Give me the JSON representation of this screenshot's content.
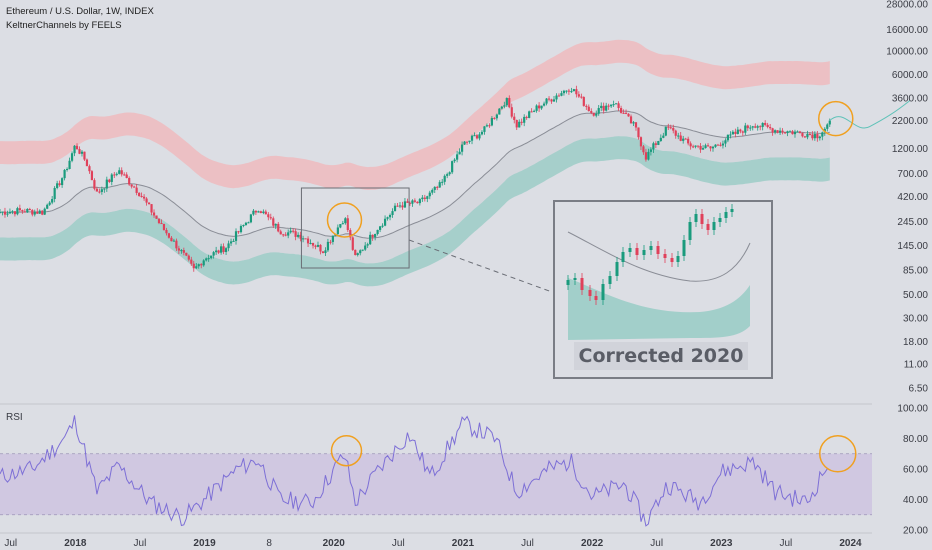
{
  "header": {
    "title": "Ethereum / U.S. Dollar, 1W, INDEX",
    "indicator": "KeltnerChannels by FEELS"
  },
  "rsi_panel": {
    "label": "RSI"
  },
  "inset": {
    "label": "Corrected 2020"
  },
  "colors": {
    "background": "#dcdee4",
    "up": "#1a9b7d",
    "down": "#e0405a",
    "upper_band": "#f2b5b9",
    "lower_band": "#8fc9c1",
    "midline": "#8a8d96",
    "rsi_line": "#7d6fd6",
    "rsi_band": "#cbbfe0",
    "highlight": "#f0a020"
  },
  "chart_data": [
    {
      "type": "line",
      "subtype": "candlestick",
      "title": "Ethereum / U.S. Dollar, 1W, INDEX",
      "yscale": "log",
      "y_ticks": [
        "28000.00",
        "16000.00",
        "10000.00",
        "6000.00",
        "3600.00",
        "2200.00",
        "1200.00",
        "700.00",
        "420.00",
        "245.00",
        "145.00",
        "85.00",
        "50.00",
        "30.00",
        "18.00",
        "11.00",
        "6.50"
      ],
      "x_ticks": [
        "Jul",
        "2018",
        "Jul",
        "2019",
        "8",
        "2020",
        "Jul",
        "2021",
        "Jul",
        "2022",
        "Jul",
        "2023",
        "Jul",
        "2024"
      ],
      "bold_x_ticks": [
        "2018",
        "2019",
        "2020",
        "2021",
        "2022",
        "2023",
        "2024"
      ],
      "x_range": [
        "2017-06",
        "2024-03"
      ],
      "series": [
        {
          "x": "2017-06",
          "y": 300
        },
        {
          "x": "2017-08",
          "y": 310
        },
        {
          "x": "2017-10",
          "y": 300
        },
        {
          "x": "2017-12",
          "y": 700
        },
        {
          "x": "2018-01",
          "y": 1300
        },
        {
          "x": "2018-02",
          "y": 900
        },
        {
          "x": "2018-03",
          "y": 450
        },
        {
          "x": "2018-05",
          "y": 750
        },
        {
          "x": "2018-07",
          "y": 450
        },
        {
          "x": "2018-09",
          "y": 220
        },
        {
          "x": "2018-11",
          "y": 120
        },
        {
          "x": "2018-12",
          "y": 85
        },
        {
          "x": "2019-01",
          "y": 110
        },
        {
          "x": "2019-03",
          "y": 140
        },
        {
          "x": "2019-05",
          "y": 250
        },
        {
          "x": "2019-06",
          "y": 330
        },
        {
          "x": "2019-08",
          "y": 200
        },
        {
          "x": "2019-10",
          "y": 180
        },
        {
          "x": "2019-12",
          "y": 130
        },
        {
          "x": "2020-02",
          "y": 270
        },
        {
          "x": "2020-03",
          "y": 110
        },
        {
          "x": "2020-05",
          "y": 210
        },
        {
          "x": "2020-07",
          "y": 350
        },
        {
          "x": "2020-09",
          "y": 370
        },
        {
          "x": "2020-11",
          "y": 550
        },
        {
          "x": "2021-01",
          "y": 1300
        },
        {
          "x": "2021-03",
          "y": 1800
        },
        {
          "x": "2021-05",
          "y": 3500
        },
        {
          "x": "2021-06",
          "y": 2000
        },
        {
          "x": "2021-08",
          "y": 3000
        },
        {
          "x": "2021-11",
          "y": 4600
        },
        {
          "x": "2022-01",
          "y": 2600
        },
        {
          "x": "2022-03",
          "y": 3300
        },
        {
          "x": "2022-05",
          "y": 1900
        },
        {
          "x": "2022-06",
          "y": 1000
        },
        {
          "x": "2022-08",
          "y": 1900
        },
        {
          "x": "2022-10",
          "y": 1300
        },
        {
          "x": "2022-12",
          "y": 1200
        },
        {
          "x": "2023-02",
          "y": 1600
        },
        {
          "x": "2023-04",
          "y": 2050
        },
        {
          "x": "2023-06",
          "y": 1800
        },
        {
          "x": "2023-08",
          "y": 1700
        },
        {
          "x": "2023-10",
          "y": 1600
        },
        {
          "x": "2023-11",
          "y": 2050
        }
      ],
      "annotations": [
        "2020-02 local high (circled)",
        "2023-11 breakout (circled)"
      ]
    },
    {
      "type": "line",
      "title": "RSI",
      "ylim": [
        20,
        100
      ],
      "y_ticks": [
        "100.00",
        "80.00",
        "60.00",
        "40.00",
        "20.00"
      ],
      "band": [
        30,
        70
      ],
      "series": [
        {
          "x": "2017-06",
          "y": 55
        },
        {
          "x": "2017-09",
          "y": 60
        },
        {
          "x": "2017-12",
          "y": 80
        },
        {
          "x": "2018-01",
          "y": 92
        },
        {
          "x": "2018-03",
          "y": 45
        },
        {
          "x": "2018-05",
          "y": 62
        },
        {
          "x": "2018-08",
          "y": 38
        },
        {
          "x": "2018-11",
          "y": 28
        },
        {
          "x": "2019-01",
          "y": 40
        },
        {
          "x": "2019-04",
          "y": 60
        },
        {
          "x": "2019-06",
          "y": 66
        },
        {
          "x": "2019-08",
          "y": 40
        },
        {
          "x": "2019-11",
          "y": 38
        },
        {
          "x": "2020-02",
          "y": 70
        },
        {
          "x": "2020-03",
          "y": 38
        },
        {
          "x": "2020-05",
          "y": 58
        },
        {
          "x": "2020-08",
          "y": 83
        },
        {
          "x": "2020-10",
          "y": 55
        },
        {
          "x": "2021-01",
          "y": 90
        },
        {
          "x": "2021-04",
          "y": 80
        },
        {
          "x": "2021-06",
          "y": 45
        },
        {
          "x": "2021-09",
          "y": 60
        },
        {
          "x": "2021-11",
          "y": 65
        },
        {
          "x": "2022-01",
          "y": 42
        },
        {
          "x": "2022-04",
          "y": 50
        },
        {
          "x": "2022-06",
          "y": 25
        },
        {
          "x": "2022-08",
          "y": 50
        },
        {
          "x": "2022-11",
          "y": 38
        },
        {
          "x": "2023-01",
          "y": 58
        },
        {
          "x": "2023-04",
          "y": 65
        },
        {
          "x": "2023-06",
          "y": 45
        },
        {
          "x": "2023-09",
          "y": 38
        },
        {
          "x": "2023-11",
          "y": 65
        }
      ]
    }
  ]
}
